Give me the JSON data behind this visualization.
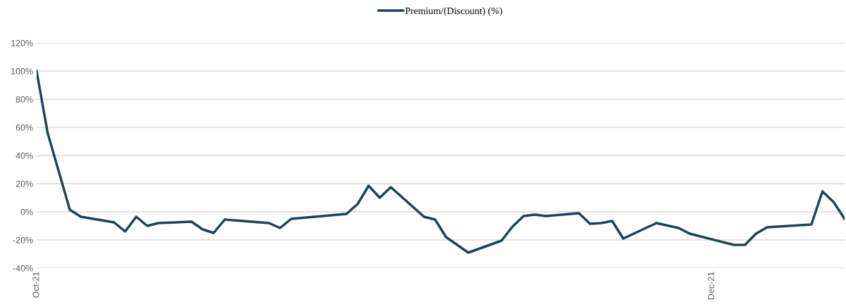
{
  "chart_data": {
    "type": "line",
    "x": [
      "2021-10-01",
      "2021-10-02",
      "2021-10-04",
      "2021-10-05",
      "2021-10-08",
      "2021-10-09",
      "2021-10-10",
      "2021-10-11",
      "2021-10-12",
      "2021-10-15",
      "2021-10-16",
      "2021-10-17",
      "2021-10-18",
      "2021-10-22",
      "2021-10-23",
      "2021-10-24",
      "2021-10-29",
      "2021-10-30",
      "2021-10-31",
      "2021-11-01",
      "2021-11-02",
      "2021-11-05",
      "2021-11-06",
      "2021-11-07",
      "2021-11-09",
      "2021-11-12",
      "2021-11-13",
      "2021-11-14",
      "2021-11-15",
      "2021-11-16",
      "2021-11-19",
      "2021-11-20",
      "2021-11-21",
      "2021-11-22",
      "2021-11-23",
      "2021-11-26",
      "2021-11-28",
      "2021-11-29",
      "2021-12-03",
      "2021-12-04",
      "2021-12-05",
      "2021-12-06",
      "2021-12-10",
      "2021-12-11",
      "2021-12-12",
      "2021-12-13"
    ],
    "series": [
      {
        "name": "Premium/(Discount) (%)",
        "color": "#1d4452",
        "values": [
          100,
          56,
          1.5,
          -3.5,
          -7.5,
          -14,
          -3.5,
          -10,
          -8,
          -7,
          -12.5,
          -15,
          -5.5,
          -8,
          -11.5,
          -5,
          -1.5,
          5.5,
          18.5,
          10,
          17.5,
          -3.5,
          -5.5,
          -18,
          -29,
          -20.5,
          -10.5,
          -3,
          -2,
          -3,
          -1,
          -8.5,
          -8,
          -6.5,
          -19,
          -8,
          -11.5,
          -15.5,
          -23.5,
          -23.5,
          -15.5,
          -11,
          -9,
          14.5,
          7,
          -5
        ]
      }
    ],
    "xlim": [
      "2021-10-01",
      "2021-12-13"
    ],
    "xticks": [
      {
        "value": "2021-10-01",
        "label": "Oct-21"
      },
      {
        "value": "2021-12-01",
        "label": "Dec-21"
      }
    ],
    "ylim": [
      -40,
      120
    ],
    "yticks": [
      {
        "value": -40,
        "label": "-40%"
      },
      {
        "value": -20,
        "label": "-20%"
      },
      {
        "value": 0,
        "label": "0%"
      },
      {
        "value": 20,
        "label": "20%"
      },
      {
        "value": 40,
        "label": "40%"
      },
      {
        "value": 60,
        "label": "60%"
      },
      {
        "value": 80,
        "label": "80%"
      },
      {
        "value": 100,
        "label": "100%"
      },
      {
        "value": 120,
        "label": "120%"
      }
    ],
    "grid": "y",
    "legend": "top",
    "marker": "none",
    "line_style": "solid"
  }
}
